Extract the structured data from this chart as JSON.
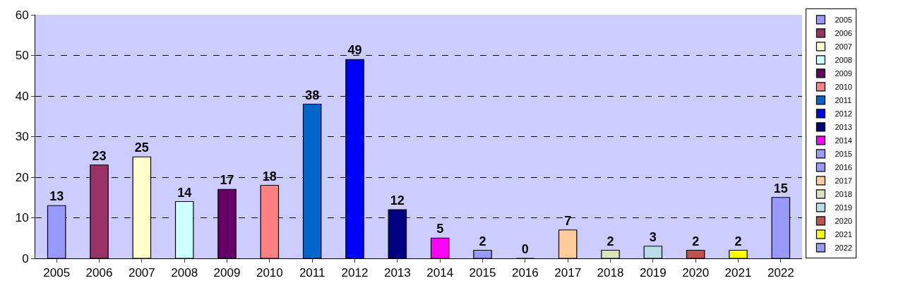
{
  "chart_data": {
    "type": "bar",
    "categories": [
      "2005",
      "2006",
      "2007",
      "2008",
      "2009",
      "2010",
      "2011",
      "2012",
      "2013",
      "2014",
      "2015",
      "2016",
      "2017",
      "2018",
      "2019",
      "2020",
      "2021",
      "2022"
    ],
    "series": [
      {
        "name": "2005",
        "color": "#9999ff",
        "values": [
          13,
          null,
          null,
          null,
          null,
          null,
          null,
          null,
          null,
          null,
          null,
          null,
          null,
          null,
          null,
          null,
          null,
          null
        ]
      },
      {
        "name": "2006",
        "color": "#993366",
        "values": [
          null,
          23,
          null,
          null,
          null,
          null,
          null,
          null,
          null,
          null,
          null,
          null,
          null,
          null,
          null,
          null,
          null,
          null
        ]
      },
      {
        "name": "2007",
        "color": "#ffffcc",
        "values": [
          null,
          null,
          25,
          null,
          null,
          null,
          null,
          null,
          null,
          null,
          null,
          null,
          null,
          null,
          null,
          null,
          null,
          null
        ]
      },
      {
        "name": "2008",
        "color": "#ccffff",
        "values": [
          null,
          null,
          null,
          14,
          null,
          null,
          null,
          null,
          null,
          null,
          null,
          null,
          null,
          null,
          null,
          null,
          null,
          null
        ]
      },
      {
        "name": "2009",
        "color": "#660066",
        "values": [
          null,
          null,
          null,
          null,
          17,
          null,
          null,
          null,
          null,
          null,
          null,
          null,
          null,
          null,
          null,
          null,
          null,
          null
        ]
      },
      {
        "name": "2010",
        "color": "#ff8080",
        "values": [
          null,
          null,
          null,
          null,
          null,
          18,
          null,
          null,
          null,
          null,
          null,
          null,
          null,
          null,
          null,
          null,
          null,
          null
        ]
      },
      {
        "name": "2011",
        "color": "#0066cc",
        "values": [
          null,
          null,
          null,
          null,
          null,
          null,
          38,
          null,
          null,
          null,
          null,
          null,
          null,
          null,
          null,
          null,
          null,
          null
        ]
      },
      {
        "name": "2012",
        "color": "#0000ff",
        "values": [
          null,
          null,
          null,
          null,
          null,
          null,
          null,
          49,
          null,
          null,
          null,
          null,
          null,
          null,
          null,
          null,
          null,
          null
        ]
      },
      {
        "name": "2013",
        "color": "#000080",
        "values": [
          null,
          null,
          null,
          null,
          null,
          null,
          null,
          null,
          12,
          null,
          null,
          null,
          null,
          null,
          null,
          null,
          null,
          null
        ]
      },
      {
        "name": "2014",
        "color": "#ff00ff",
        "values": [
          null,
          null,
          null,
          null,
          null,
          null,
          null,
          null,
          null,
          5,
          null,
          null,
          null,
          null,
          null,
          null,
          null,
          null
        ]
      },
      {
        "name": "2015",
        "color": "#9999ff",
        "values": [
          null,
          null,
          null,
          null,
          null,
          null,
          null,
          null,
          null,
          null,
          2,
          null,
          null,
          null,
          null,
          null,
          null,
          null
        ]
      },
      {
        "name": "2016",
        "color": "#9999ff",
        "values": [
          null,
          null,
          null,
          null,
          null,
          null,
          null,
          null,
          null,
          null,
          null,
          0,
          null,
          null,
          null,
          null,
          null,
          null
        ]
      },
      {
        "name": "2017",
        "color": "#ffcc99",
        "values": [
          null,
          null,
          null,
          null,
          null,
          null,
          null,
          null,
          null,
          null,
          null,
          null,
          7,
          null,
          null,
          null,
          null,
          null
        ]
      },
      {
        "name": "2018",
        "color": "#d9e4bd",
        "values": [
          null,
          null,
          null,
          null,
          null,
          null,
          null,
          null,
          null,
          null,
          null,
          null,
          null,
          2,
          null,
          null,
          null,
          null
        ]
      },
      {
        "name": "2019",
        "color": "#b7dee8",
        "values": [
          null,
          null,
          null,
          null,
          null,
          null,
          null,
          null,
          null,
          null,
          null,
          null,
          null,
          null,
          3,
          null,
          null,
          null
        ]
      },
      {
        "name": "2020",
        "color": "#c0504d",
        "values": [
          null,
          null,
          null,
          null,
          null,
          null,
          null,
          null,
          null,
          null,
          null,
          null,
          null,
          null,
          null,
          2,
          null,
          null
        ]
      },
      {
        "name": "2021",
        "color": "#ffff00",
        "values": [
          null,
          null,
          null,
          null,
          null,
          null,
          null,
          null,
          null,
          null,
          null,
          null,
          null,
          null,
          null,
          null,
          2,
          null
        ]
      },
      {
        "name": "2022",
        "color": "#9999ff",
        "values": [
          null,
          null,
          null,
          null,
          null,
          null,
          null,
          null,
          null,
          null,
          null,
          null,
          null,
          null,
          null,
          null,
          null,
          15
        ]
      }
    ],
    "ylim": [
      0,
      60
    ],
    "yticks": [
      0,
      10,
      20,
      30,
      40,
      50,
      60
    ],
    "grid": "y",
    "legend": "right",
    "data_labels": true
  }
}
